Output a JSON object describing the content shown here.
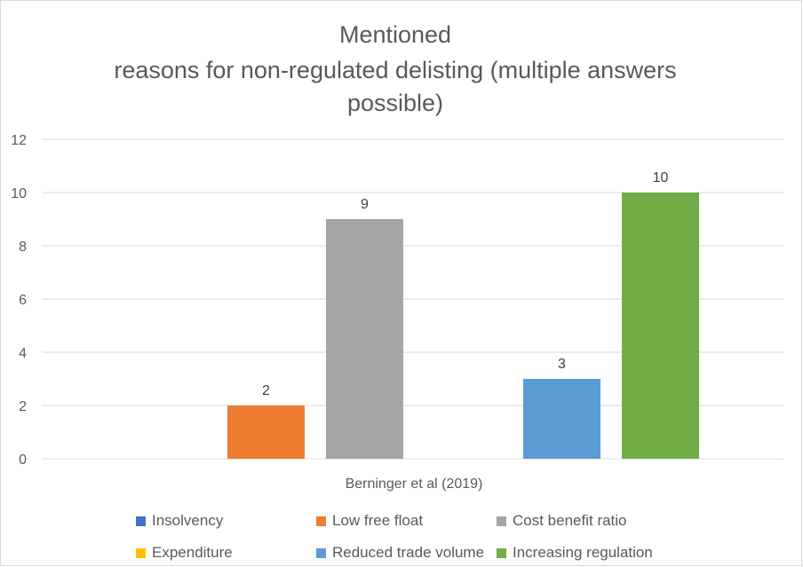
{
  "chart_data": {
    "type": "bar",
    "title_lines": [
      "Mentioned",
      "reasons for non-regulated delisting (multiple answers",
      "possible)"
    ],
    "categories": [
      "Berninger et al (2019)"
    ],
    "series": [
      {
        "name": "Insolvency",
        "values": [
          0
        ],
        "color": "#4472C4"
      },
      {
        "name": "Low free float",
        "values": [
          2
        ],
        "color": "#ED7D31"
      },
      {
        "name": "Cost benefit ratio",
        "values": [
          9
        ],
        "color": "#A5A5A5"
      },
      {
        "name": "Expenditure",
        "values": [
          0
        ],
        "color": "#FFC000"
      },
      {
        "name": "Reduced trade volume",
        "values": [
          3
        ],
        "color": "#5B9BD5"
      },
      {
        "name": "Increasing regulation",
        "values": [
          10
        ],
        "color": "#70AD47"
      }
    ],
    "data_labels": [
      "",
      "2",
      "9",
      "",
      "3",
      "10"
    ],
    "ylim": [
      0,
      12
    ],
    "yticks": [
      0,
      2,
      4,
      6,
      8,
      10,
      12
    ],
    "grid": true,
    "legend_position": "bottom"
  }
}
